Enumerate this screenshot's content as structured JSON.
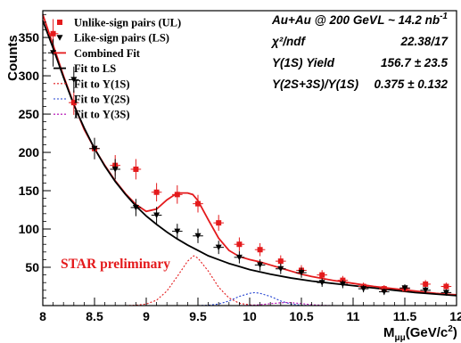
{
  "chart_data": {
    "type": "scatter",
    "xlabel": "M",
    "xlabel_sub": "μμ",
    "xlabel_unit_open": "(GeV/c",
    "xlabel_unit_sup": "2",
    "xlabel_unit_close": ")",
    "ylabel": "Counts",
    "xlim": [
      8,
      12
    ],
    "ylim": [
      0,
      385
    ],
    "x_ticks": [
      8,
      8.5,
      9,
      9.5,
      10,
      10.5,
      11,
      11.5,
      12
    ],
    "x_tick_labels": [
      "8",
      "8.5",
      "9",
      "9.5",
      "10",
      "10.5",
      "11",
      "11.5",
      "12"
    ],
    "y_ticks": [
      50,
      100,
      150,
      200,
      250,
      300,
      350
    ],
    "y_tick_labels": [
      "50",
      "100",
      "150",
      "200",
      "250",
      "300",
      "350"
    ],
    "bin_half_width": 0.05,
    "series": [
      {
        "name": "Unlike-sign pairs (UL)",
        "kind": "points",
        "marker": "square",
        "color": "#e41a1c",
        "x": [
          8.1,
          8.3,
          8.5,
          8.7,
          8.9,
          9.1,
          9.3,
          9.5,
          9.7,
          9.9,
          10.1,
          10.3,
          10.5,
          10.7,
          10.9,
          11.1,
          11.3,
          11.5,
          11.7,
          11.9
        ],
        "y": [
          355,
          265,
          205,
          183,
          178,
          148,
          145,
          133,
          108,
          80,
          73,
          58,
          46,
          40,
          33,
          25,
          22,
          22,
          28,
          25
        ],
        "yerr": [
          19,
          16,
          14,
          13.5,
          13.3,
          12,
          12,
          11.5,
          10.4,
          9,
          8.5,
          7.6,
          6.8,
          6.3,
          5.7,
          5,
          4.7,
          4.7,
          5.3,
          5
        ]
      },
      {
        "name": "Like-sign pairs (LS)",
        "kind": "points",
        "marker": "triangle-down",
        "color": "#000000",
        "x": [
          8.1,
          8.3,
          8.5,
          8.7,
          8.9,
          9.1,
          9.3,
          9.5,
          9.7,
          9.9,
          10.1,
          10.3,
          10.5,
          10.7,
          10.9,
          11.1,
          11.3,
          11.5,
          11.7,
          11.9
        ],
        "y": [
          330,
          295,
          205,
          178,
          128,
          118,
          97,
          91,
          76,
          63,
          53,
          48,
          43,
          30,
          28,
          22,
          18,
          23,
          20,
          17
        ],
        "yerr": [
          18,
          17,
          14,
          13.3,
          11.3,
          10.9,
          9.8,
          9.5,
          8.7,
          7.9,
          7.3,
          6.9,
          6.6,
          5.5,
          5.3,
          4.7,
          4.2,
          4.8,
          4.5,
          4.1
        ]
      },
      {
        "name": "Combined Fit",
        "kind": "curve",
        "color": "#e41a1c",
        "dash": "solid",
        "x": [
          8.0,
          8.1,
          8.2,
          8.3,
          8.4,
          8.5,
          8.6,
          8.7,
          8.8,
          8.9,
          9.0,
          9.1,
          9.2,
          9.3,
          9.4,
          9.45,
          9.5,
          9.6,
          9.7,
          9.8,
          9.9,
          10.0,
          10.1,
          10.2,
          10.3,
          10.4,
          10.5,
          10.6,
          10.8,
          11.0,
          11.2,
          11.4,
          11.6,
          11.8,
          12.0
        ],
        "y": [
          380,
          340,
          300,
          263,
          230,
          205,
          183,
          163,
          146,
          132,
          123,
          126,
          138,
          147,
          147,
          145,
          137,
          112,
          88,
          72,
          64,
          60,
          57,
          53,
          49,
          45,
          41,
          38,
          33,
          29,
          25,
          22,
          19,
          16,
          14
        ]
      },
      {
        "name": "Fit to LS",
        "kind": "curve",
        "color": "#000000",
        "dash": "solid",
        "x": [
          8.0,
          8.1,
          8.2,
          8.3,
          8.4,
          8.5,
          8.6,
          8.7,
          8.8,
          8.9,
          9.0,
          9.1,
          9.2,
          9.3,
          9.4,
          9.5,
          9.6,
          9.7,
          9.8,
          9.9,
          10.0,
          10.2,
          10.4,
          10.6,
          10.8,
          11.0,
          11.2,
          11.4,
          11.6,
          11.8,
          12.0
        ],
        "y": [
          372,
          336,
          298,
          262,
          232,
          205,
          182,
          162,
          145,
          130,
          117,
          106,
          96,
          87,
          79,
          72,
          65,
          60,
          55,
          51,
          47,
          41,
          36,
          32,
          29,
          26,
          23,
          20,
          17,
          15,
          13
        ]
      },
      {
        "name": "Fit to Υ(1S)",
        "kind": "curve",
        "color": "#e41a1c",
        "dash": "dotted",
        "x": [
          8.8,
          8.9,
          9.0,
          9.1,
          9.2,
          9.3,
          9.4,
          9.46,
          9.5,
          9.6,
          9.7,
          9.8,
          9.9,
          10.0,
          10.1,
          10.2
        ],
        "y": [
          0,
          0.5,
          2,
          7,
          19,
          38,
          58,
          65,
          62,
          45,
          24,
          10,
          3,
          1,
          0.2,
          0
        ]
      },
      {
        "name": "Fit to Υ(2S)",
        "kind": "curve",
        "color": "#1f3fd0",
        "dash": "dotted",
        "x": [
          9.5,
          9.6,
          9.7,
          9.8,
          9.9,
          10.0,
          10.05,
          10.1,
          10.2,
          10.3,
          10.4,
          10.5,
          10.6
        ],
        "y": [
          0,
          0.5,
          2,
          6,
          12,
          16,
          17,
          16,
          12,
          6,
          2,
          0.5,
          0
        ]
      },
      {
        "name": "Fit to Υ(3S)",
        "kind": "curve",
        "color": "#b000b0",
        "dash": "dotted",
        "x": [
          9.9,
          10.0,
          10.1,
          10.2,
          10.3,
          10.36,
          10.4,
          10.5,
          10.6,
          10.7,
          10.8
        ],
        "y": [
          0,
          0.4,
          1.2,
          2.5,
          3.6,
          4,
          3.8,
          2.6,
          1.2,
          0.4,
          0
        ]
      }
    ],
    "legend": [
      {
        "label": "Unlike-sign pairs (UL)",
        "symbol": "square",
        "color": "#e41a1c"
      },
      {
        "label": "Like-sign pairs (LS)",
        "symbol": "triangle-down",
        "color": "#000000"
      },
      {
        "label": "Combined Fit",
        "symbol": "line",
        "color": "#e41a1c"
      },
      {
        "label": "Fit to LS",
        "symbol": "line",
        "color": "#000000"
      },
      {
        "label": "Fit to  Υ(1S)",
        "symbol": "dotted-line",
        "color": "#e41a1c"
      },
      {
        "label": "Fit to  Υ(2S)",
        "symbol": "dotted-line",
        "color": "#1f3fd0"
      },
      {
        "label": "Fit to  Υ(3S)",
        "symbol": "dotted-line",
        "color": "#b000b0"
      }
    ],
    "info": [
      {
        "label": "Au+Au @ 200 GeV",
        "value": "L ~ 14.2 nb",
        "value_sup": "-1"
      },
      {
        "label": "χ²/ndf",
        "value": "22.38/17",
        "value_sup": ""
      },
      {
        "label": "Υ(1S) Yield",
        "value": "156.7 ± 23.5",
        "value_sup": ""
      },
      {
        "label": "Υ(2S+3S)/Υ(1S)",
        "value": "0.375 ± 0.132",
        "value_sup": ""
      }
    ],
    "annotation": {
      "text": "STAR preliminary",
      "color": "#e41a1c"
    }
  }
}
